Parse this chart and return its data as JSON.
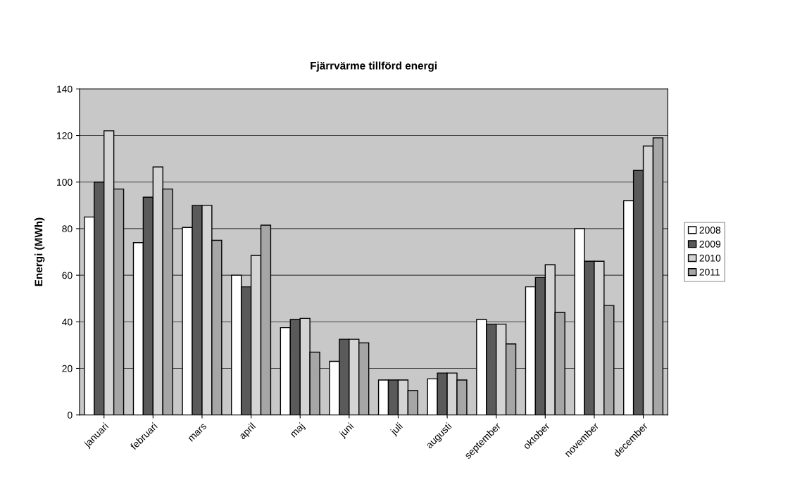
{
  "chart_data": {
    "type": "bar",
    "title": "Fjärrvärme tillförd energi",
    "ylabel": "Energi (MWh)",
    "categories": [
      "januari",
      "februari",
      "mars",
      "april",
      "maj",
      "juni",
      "juli",
      "augusti",
      "september",
      "oktober",
      "november",
      "december"
    ],
    "series": [
      {
        "name": "2008",
        "color": "#ffffff",
        "values": [
          85,
          74,
          80.5,
          60,
          37.5,
          23,
          15,
          15.5,
          41,
          55,
          80,
          92
        ]
      },
      {
        "name": "2009",
        "color": "#5a5a5a",
        "values": [
          100,
          93.5,
          90,
          55,
          41,
          32.5,
          15,
          18,
          39,
          59,
          66,
          105
        ]
      },
      {
        "name": "2010",
        "color": "#d4d4d4",
        "values": [
          122,
          106.5,
          90,
          68.5,
          41.5,
          32.5,
          15,
          18,
          39,
          64.5,
          66,
          115.5
        ]
      },
      {
        "name": "2011",
        "color": "#a6a6a6",
        "values": [
          97,
          97,
          75,
          81.5,
          27,
          31,
          10.5,
          15,
          30.5,
          44,
          47,
          119
        ]
      }
    ],
    "ylim": [
      0,
      140
    ],
    "yticks": [
      0,
      20,
      40,
      60,
      80,
      100,
      120,
      140
    ],
    "grid": "y",
    "legend": "right"
  }
}
